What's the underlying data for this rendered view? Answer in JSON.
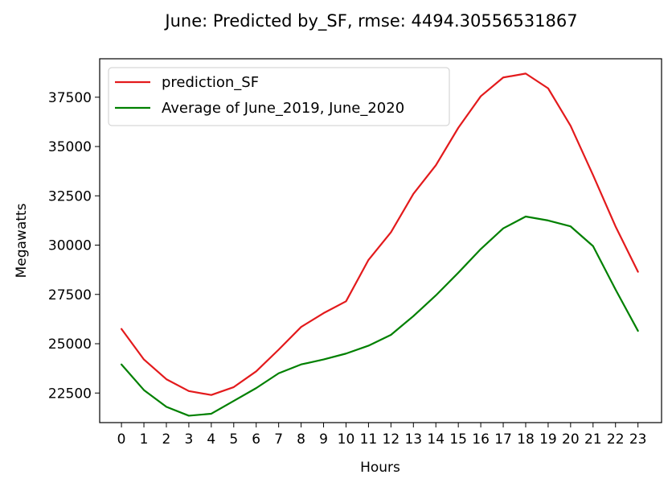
{
  "chart_data": {
    "type": "line",
    "title": "June: Predicted by_SF, rmse: 4494.30556531867",
    "xlabel": "Hours",
    "ylabel": "Megawatts",
    "x": [
      0,
      1,
      2,
      3,
      4,
      5,
      6,
      7,
      8,
      9,
      10,
      11,
      12,
      13,
      14,
      15,
      16,
      17,
      18,
      19,
      20,
      21,
      22,
      23
    ],
    "xticks": [
      "0",
      "1",
      "2",
      "3",
      "4",
      "5",
      "6",
      "7",
      "8",
      "9",
      "10",
      "11",
      "12",
      "13",
      "14",
      "15",
      "16",
      "17",
      "18",
      "19",
      "20",
      "21",
      "22",
      "23"
    ],
    "yticks": [
      22500,
      25000,
      27500,
      30000,
      32500,
      35000,
      37500
    ],
    "ytick_labels": [
      "22500",
      "25000",
      "27500",
      "30000",
      "32500",
      "35000",
      "37500"
    ],
    "xlim": [
      -0.97,
      24.05
    ],
    "ylim": [
      21000,
      39450
    ],
    "grid": false,
    "legend_position": "upper-left",
    "series": [
      {
        "name": "prediction_SF",
        "color": "#e31a1c",
        "values": [
          25750,
          24200,
          23200,
          22600,
          22400,
          22800,
          23600,
          24700,
          25850,
          26550,
          27150,
          29250,
          30650,
          32600,
          34050,
          35950,
          37550,
          38500,
          38700,
          37950,
          36050,
          33550,
          30950,
          28650
        ]
      },
      {
        "name": "Average of June_2019, June_2020",
        "color": "#008000",
        "values": [
          23950,
          22650,
          21800,
          21350,
          21450,
          22100,
          22750,
          23500,
          23950,
          24200,
          24500,
          24900,
          25450,
          26400,
          27450,
          28600,
          29800,
          30850,
          31450,
          31250,
          30950,
          29950,
          27750,
          25650
        ]
      }
    ]
  }
}
